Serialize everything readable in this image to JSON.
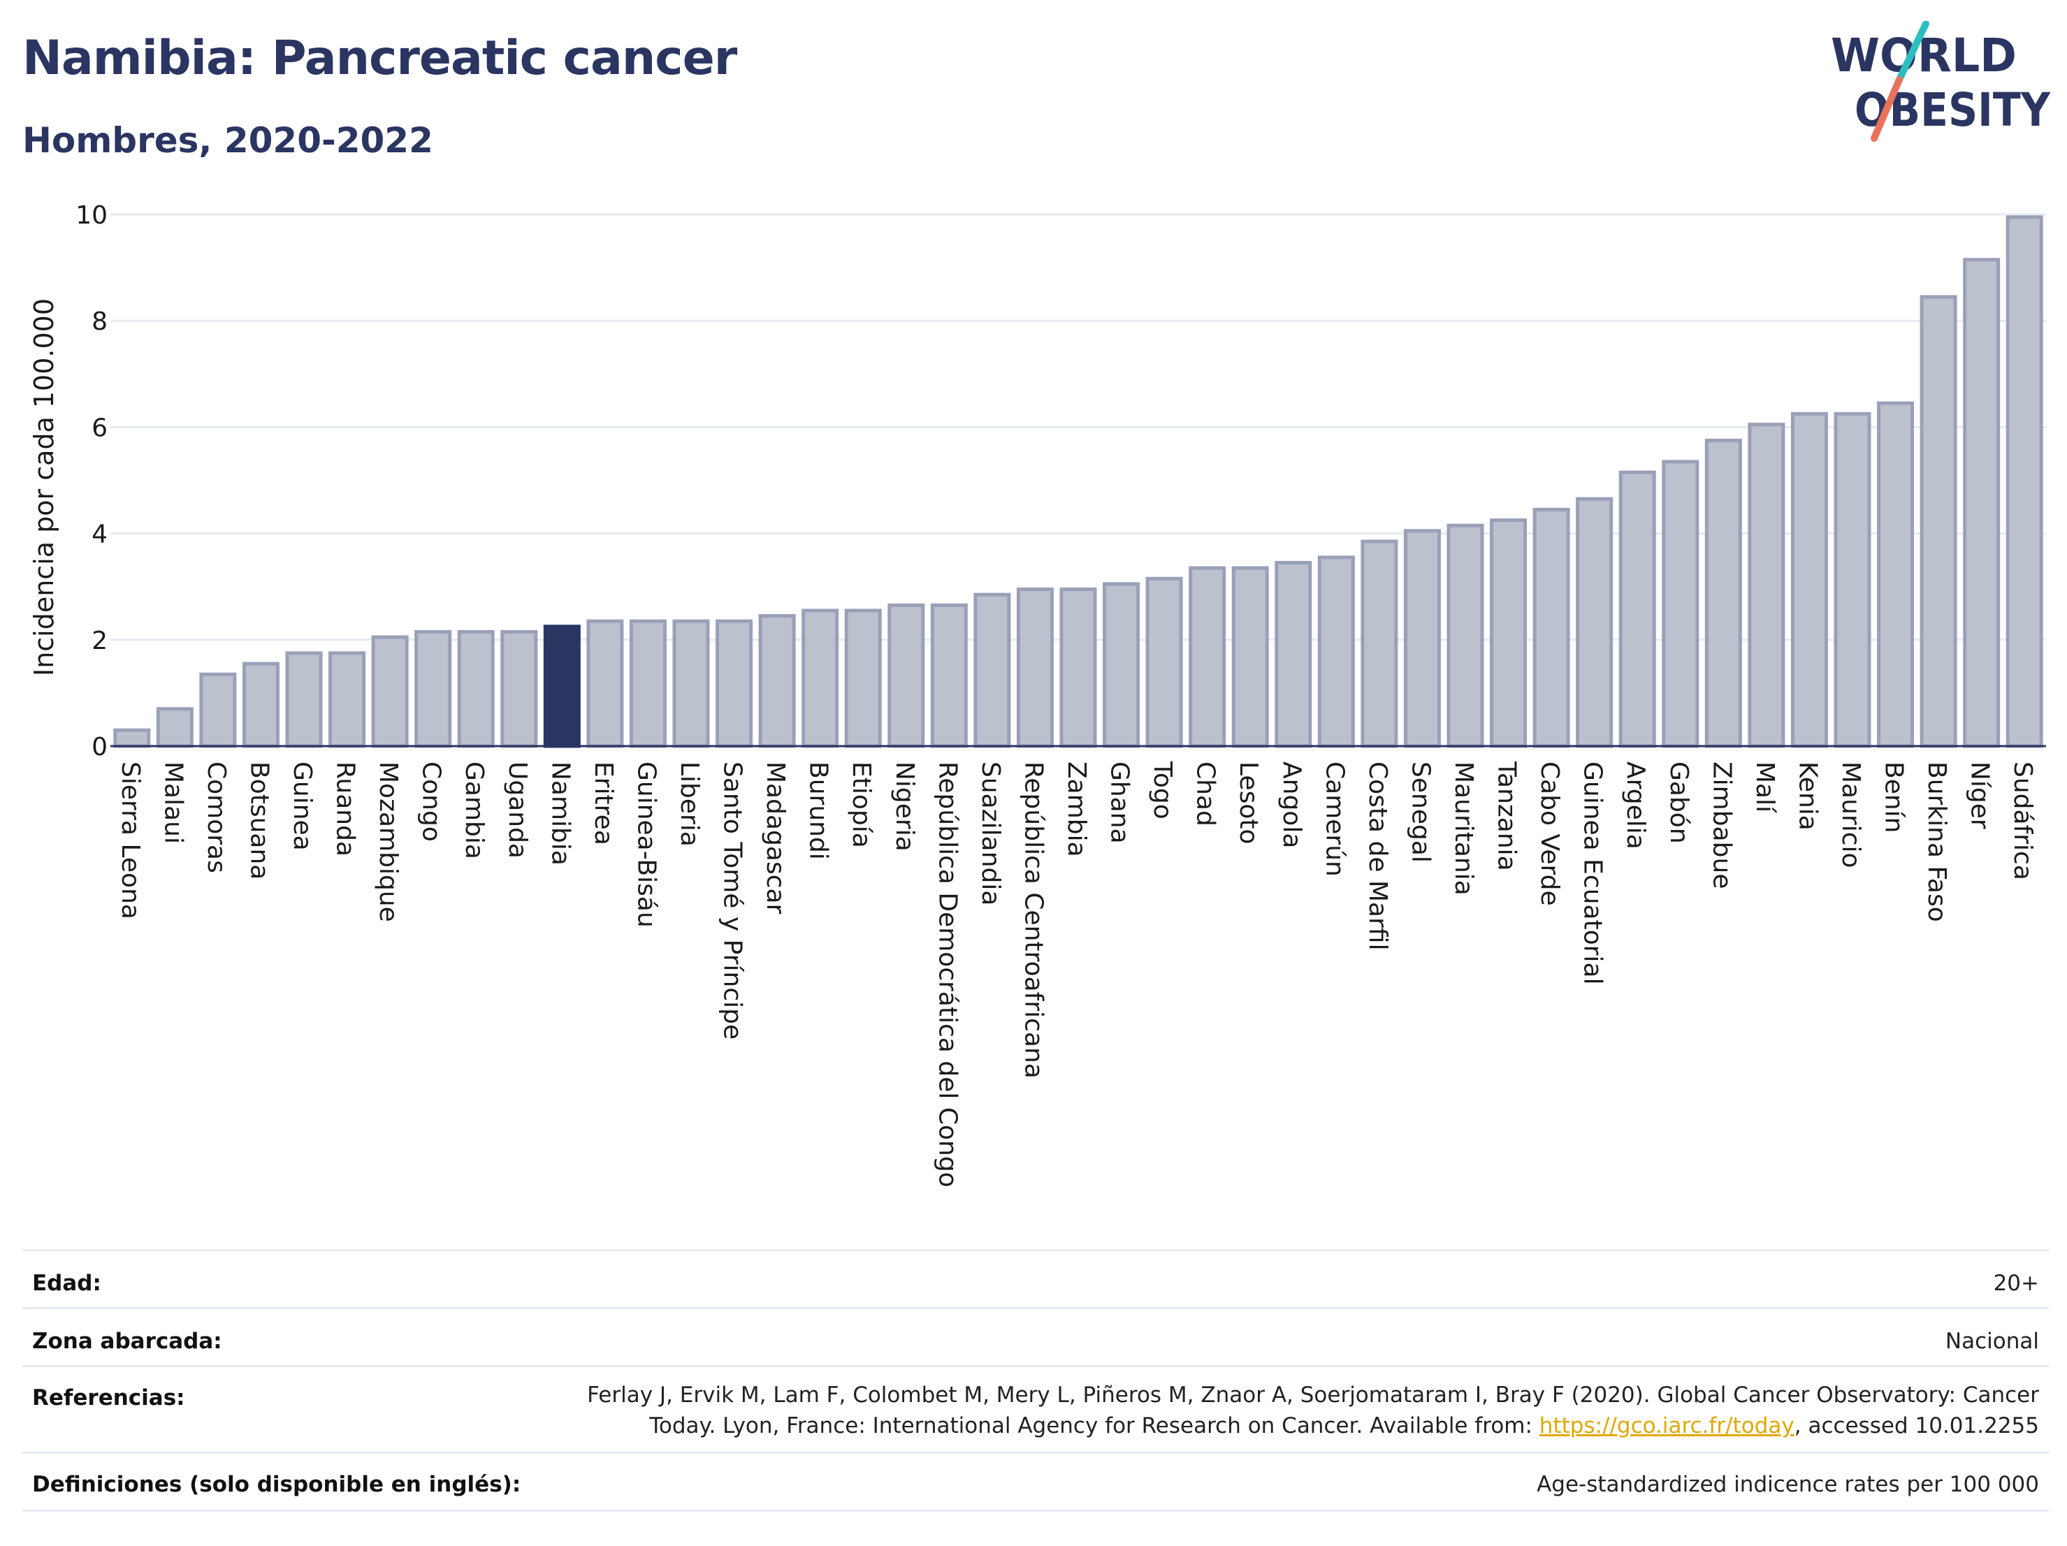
{
  "header": {
    "title": "Namibia: Pancreatic cancer",
    "subtitle": "Hombres, 2020-2022"
  },
  "logo": {
    "line1": "WORLD",
    "line2": "OBESITY",
    "colors": {
      "text": "#2b3562",
      "slash_teal": "#2bbfbf",
      "slash_coral": "#e8735a"
    }
  },
  "chart_data": {
    "type": "bar",
    "ylabel": "Incidencia por cada 100.000",
    "xlabel": "",
    "ylim": [
      0,
      10
    ],
    "yticks": [
      0,
      2,
      4,
      6,
      8,
      10
    ],
    "grid": true,
    "highlight": "Namibia",
    "colors": {
      "bar": "#bcc1ce",
      "bar_border": "#9aa0b8",
      "highlight": "#2b3562"
    },
    "categories": [
      "Sierra Leona",
      "Malaui",
      "Comoras",
      "Botsuana",
      "Guinea",
      "Ruanda",
      "Mozambique",
      "Congo",
      "Gambia",
      "Uganda",
      "Namibia",
      "Eritrea",
      "Guinea-Bisáu",
      "Liberia",
      "Santo Tomé y Príncipe",
      "Madagascar",
      "Burundi",
      "Etiopía",
      "Nigeria",
      "República Democrática del Congo",
      "Suazilandia",
      "República Centroafricana",
      "Zambia",
      "Ghana",
      "Togo",
      "Chad",
      "Lesoto",
      "Angola",
      "Camerún",
      "Costa de Marfil",
      "Senegal",
      "Mauritania",
      "Tanzania",
      "Cabo Verde",
      "Guinea Ecuatorial",
      "Argelia",
      "Gabón",
      "Zimbabue",
      "Malí",
      "Kenia",
      "Mauricio",
      "Benín",
      "Burkina Faso",
      "Níger",
      "Sudáfrica"
    ],
    "values": [
      0.3,
      0.7,
      1.35,
      1.55,
      1.75,
      1.75,
      2.05,
      2.15,
      2.15,
      2.15,
      2.25,
      2.35,
      2.35,
      2.35,
      2.35,
      2.45,
      2.55,
      2.55,
      2.65,
      2.65,
      2.85,
      2.95,
      2.95,
      3.05,
      3.15,
      3.35,
      3.35,
      3.45,
      3.55,
      3.85,
      4.05,
      4.15,
      4.25,
      4.45,
      4.65,
      5.15,
      5.35,
      5.75,
      6.05,
      6.25,
      6.25,
      6.45,
      8.45,
      9.15,
      9.95
    ]
  },
  "info": {
    "age_label": "Edad:",
    "age_value": "20+",
    "area_label": "Zona abarcada:",
    "area_value": "Nacional",
    "refs_label": "Referencias:",
    "refs_line1": "Ferlay J, Ervik M, Lam F, Colombet M, Mery L, Piñeros M, Znaor A, Soerjomataram I, Bray F (2020). Global Cancer Observatory: Cancer",
    "refs_line2_pre": "Today. Lyon, France: International Agency for Research on Cancer. Available from: ",
    "refs_link": "https://gco.iarc.fr/today",
    "refs_line2_post": ", accessed 10.01.2255",
    "defs_label": "Definiciones (solo disponible en inglés):",
    "defs_value": "Age-standardized indicence rates per 100 000"
  }
}
